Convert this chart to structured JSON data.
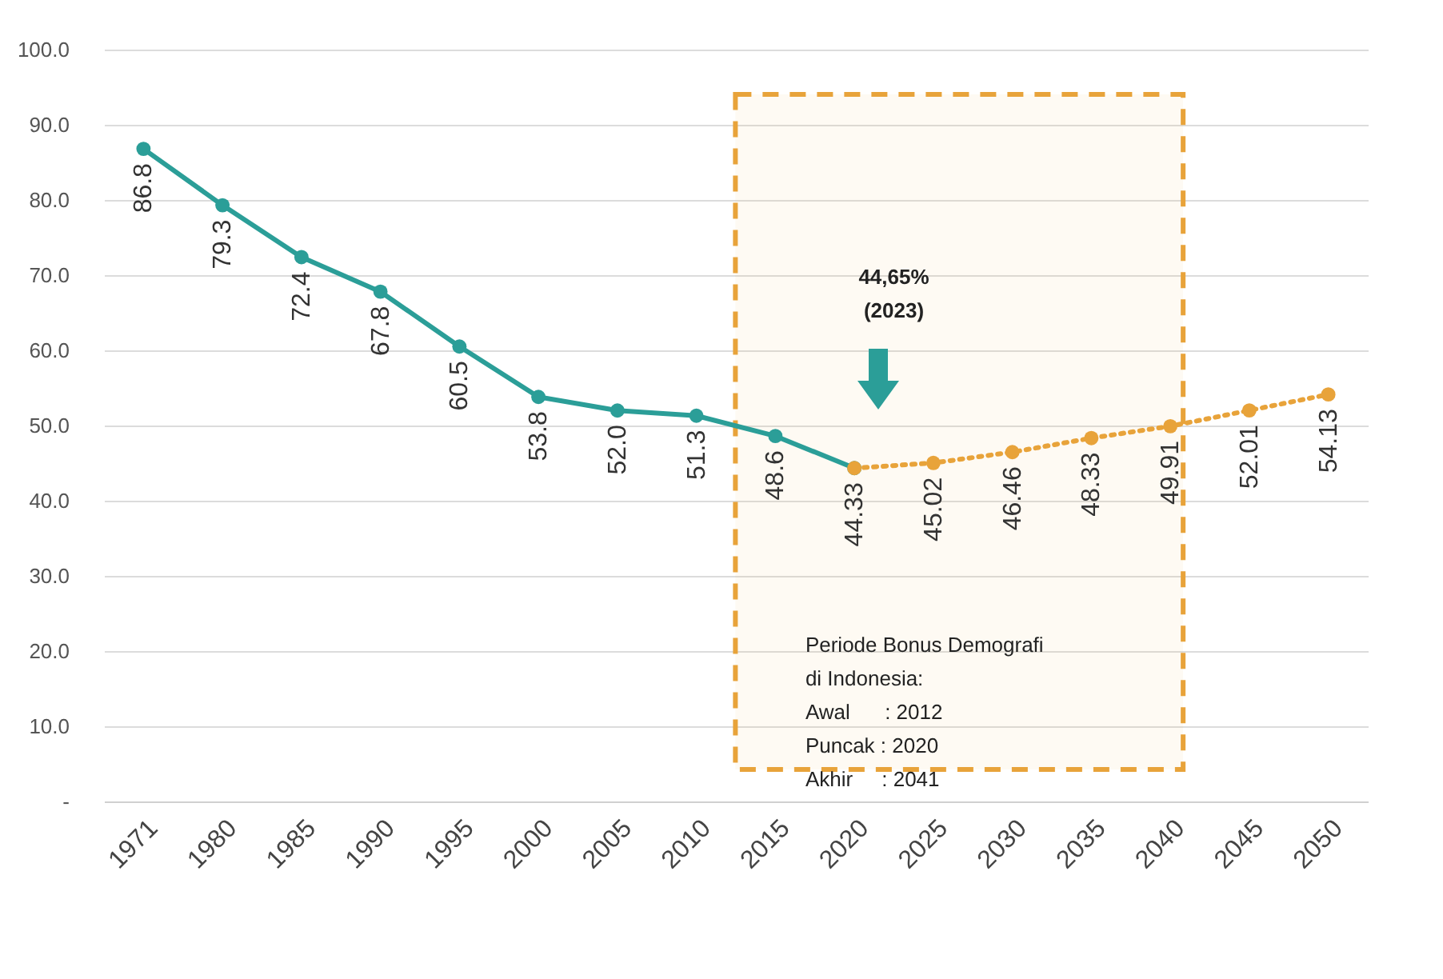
{
  "chart_data": {
    "type": "line",
    "categories": [
      "1971",
      "1980",
      "1985",
      "1990",
      "1995",
      "2000",
      "2005",
      "2010",
      "2015",
      "2020",
      "2025",
      "2030",
      "2035",
      "2040",
      "2045",
      "2050"
    ],
    "series": [
      {
        "color": "#2b9e98",
        "line_style": "solid",
        "values": [
          86.8,
          79.3,
          72.4,
          67.8,
          60.5,
          53.8,
          52.0,
          51.3,
          48.6,
          44.33,
          null,
          null,
          null,
          null,
          null,
          null
        ],
        "value_labels": [
          "86.8",
          "79.3",
          "72.4",
          "67.8",
          "60.5",
          "53.8",
          "52.0",
          "51.3",
          "48.6",
          "44.33",
          null,
          null,
          null,
          null,
          null,
          null
        ]
      },
      {
        "color": "#e8a33a",
        "line_style": "dotted",
        "values": [
          null,
          null,
          null,
          null,
          null,
          null,
          null,
          null,
          null,
          44.33,
          45.02,
          46.46,
          48.33,
          49.91,
          52.01,
          54.13
        ],
        "value_labels": [
          null,
          null,
          null,
          null,
          null,
          null,
          null,
          null,
          null,
          null,
          "45.02",
          "46.46",
          "48.33",
          "49.91",
          "52.01",
          "54.13"
        ]
      }
    ],
    "ylim": [
      0,
      100
    ],
    "yticks": [
      {
        "value": 0,
        "label": "-"
      },
      {
        "value": 10,
        "label": "10.0"
      },
      {
        "value": 20,
        "label": "20.0"
      },
      {
        "value": 30,
        "label": "30.0"
      },
      {
        "value": 40,
        "label": "40.0"
      },
      {
        "value": 50,
        "label": "50.0"
      },
      {
        "value": 60,
        "label": "60.0"
      },
      {
        "value": 70,
        "label": "70.0"
      },
      {
        "value": 80,
        "label": "80.0"
      },
      {
        "value": 90,
        "label": "90.0"
      },
      {
        "value": 100,
        "label": "100.0"
      }
    ],
    "grid": "y",
    "marker": "circle",
    "legend": false,
    "bands": [
      {
        "axis": "x",
        "from": "2015",
        "to": "2040",
        "color": "#e8a33a"
      }
    ],
    "annotations": [
      "Periode Bonus Demografi\n          di Indonesia:\nAwal      : 2012\nPuncak : 2020\nAkhir     : 2041",
      "44,65%\n(2023)"
    ]
  }
}
